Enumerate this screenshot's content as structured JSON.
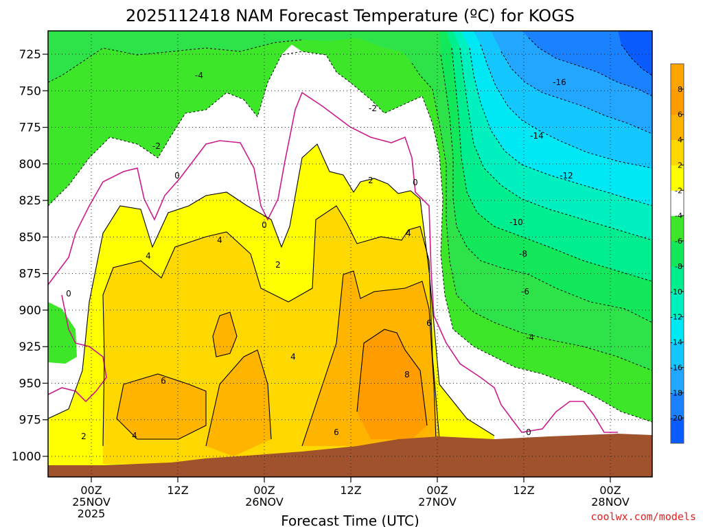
{
  "chart_data": {
    "type": "heatmap",
    "subtype": "filled-contour time-height cross section",
    "title": "2025112418 NAM Forecast Temperature (ºC) for KOGS",
    "xlabel": "Forecast Time (UTC)",
    "ylabel": "",
    "x_axis": {
      "range_hours_from_00Z_25NOV": [
        -5,
        79
      ],
      "ticks": [
        {
          "hour": 0,
          "line1": "00Z",
          "line2": "25NOV",
          "line3": "2025"
        },
        {
          "hour": 12,
          "line1": "12Z",
          "line2": "",
          "line3": ""
        },
        {
          "hour": 24,
          "line1": "00Z",
          "line2": "26NOV",
          "line3": ""
        },
        {
          "hour": 36,
          "line1": "12Z",
          "line2": "",
          "line3": ""
        },
        {
          "hour": 48,
          "line1": "00Z",
          "line2": "27NOV",
          "line3": ""
        },
        {
          "hour": 60,
          "line1": "12Z",
          "line2": "",
          "line3": ""
        },
        {
          "hour": 72,
          "line1": "00Z",
          "line2": "28NOV",
          "line3": ""
        }
      ]
    },
    "y_axis": {
      "units": "hPa",
      "range": [
        1006,
        713
      ],
      "ticks": [
        "725",
        "750",
        "775",
        "800",
        "825",
        "850",
        "875",
        "900",
        "925",
        "950",
        "975",
        "1000"
      ],
      "grid": "dotted"
    },
    "colorbar": {
      "levels": [
        -22,
        -20,
        -18,
        -16,
        -14,
        -12,
        -10,
        -8,
        -6,
        -4,
        -2,
        2,
        4,
        6,
        8,
        10
      ],
      "labels": [
        "-20",
        "-18",
        "-16",
        "-14",
        "-12",
        "-10",
        "-8",
        "-6",
        "-4",
        "-2",
        "2",
        "4",
        "6",
        "8"
      ],
      "colors": [
        "#0a5cff",
        "#1a82ff",
        "#22a6ff",
        "#14c8ff",
        "#00e8f4",
        "#00f0c0",
        "#00ee8e",
        "#12e85a",
        "#3ee62a",
        "#ffffff",
        "#ffff00",
        "#ffd800",
        "#ffb400",
        "#ff9c00",
        "#ffa500"
      ]
    },
    "contour_labels": [
      "-16",
      "-14",
      "-12",
      "-10",
      "-8",
      "-6",
      "-4",
      "-4",
      "-2",
      "-2",
      "0",
      "0",
      "0",
      "0",
      "0",
      "2",
      "2",
      "2",
      "4",
      "4",
      "4",
      "4",
      "4",
      "6",
      "6",
      "6",
      "8"
    ],
    "ground_color": "#a0522d",
    "legend": "right (vertical colorbar)",
    "sample_temperature_by_time": [
      {
        "hour": -5,
        "surface": 3,
        "p900": -3,
        "p800": -4,
        "p725": -8
      },
      {
        "hour": 6,
        "surface": 6,
        "p900": 5,
        "p800": 0,
        "p725": -5
      },
      {
        "hour": 18,
        "surface": 7,
        "p900": 6,
        "p800": 1,
        "p725": -4
      },
      {
        "hour": 30,
        "surface": 7,
        "p900": 5,
        "p800": 4,
        "p725": -2
      },
      {
        "hour": 42,
        "surface": 8,
        "p900": 7,
        "p800": 3,
        "p725": -3
      },
      {
        "hour": 48,
        "surface": 6,
        "p900": 5,
        "p800": -1,
        "p725": -6
      },
      {
        "hour": 54,
        "surface": 2,
        "p900": -5,
        "p800": -8,
        "p725": -15
      },
      {
        "hour": 66,
        "surface": 0,
        "p900": -5,
        "p800": -12,
        "p725": -18
      },
      {
        "hour": 79,
        "surface": -3,
        "p900": -6,
        "p800": -14,
        "p725": -21
      }
    ]
  },
  "footer": {
    "credit": "coolwx.com/models",
    "credit_color": "#e02020"
  }
}
